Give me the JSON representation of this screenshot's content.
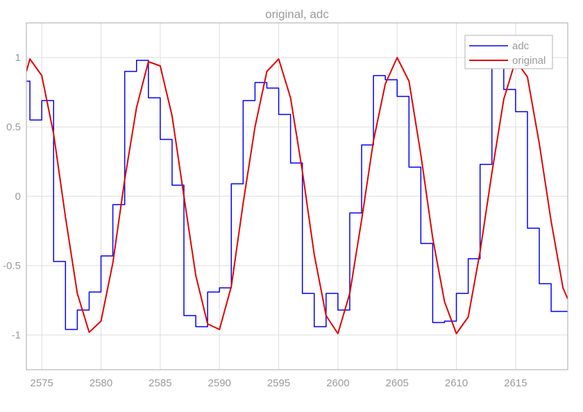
{
  "chart_data": {
    "type": "line",
    "title": "original, adc",
    "xlabel": "",
    "ylabel": "",
    "xlim": [
      2573.7,
      2619.4
    ],
    "ylim": [
      -1.25,
      1.25
    ],
    "x_ticks": [
      2575,
      2580,
      2585,
      2590,
      2595,
      2600,
      2605,
      2610,
      2615
    ],
    "y_ticks": [
      1,
      0.5,
      0,
      -0.5,
      -1
    ],
    "x_tick_labels": [
      "2575",
      "2580",
      "2585",
      "2590",
      "2595",
      "2600",
      "2605",
      "2610",
      "2615"
    ],
    "y_tick_labels": [
      "1",
      "0.5",
      "0",
      "-0.5",
      "-1"
    ],
    "grid": true,
    "legend_position": "top-right",
    "series": [
      {
        "name": "adc",
        "color": "#0000ff",
        "style": "step",
        "x": [
          2573.7,
          2574,
          2575,
          2576,
          2577,
          2578,
          2579,
          2580,
          2581,
          2582,
          2583,
          2584,
          2585,
          2586,
          2587,
          2588,
          2589,
          2590,
          2591,
          2592,
          2593,
          2594,
          2595,
          2596,
          2597,
          2598,
          2599,
          2600,
          2601,
          2602,
          2603,
          2604,
          2605,
          2606,
          2607,
          2608,
          2609,
          2610,
          2611,
          2612,
          2613,
          2614,
          2615,
          2616,
          2617,
          2618,
          2619
        ],
        "y": [
          0.83,
          0.55,
          0.69,
          -0.47,
          -0.96,
          -0.82,
          -0.69,
          -0.43,
          -0.06,
          0.9,
          0.98,
          0.71,
          0.41,
          0.08,
          -0.86,
          -0.94,
          -0.69,
          -0.66,
          0.09,
          0.69,
          0.82,
          0.78,
          0.59,
          0.24,
          -0.7,
          -0.94,
          -0.7,
          -0.82,
          -0.12,
          0.37,
          0.87,
          0.84,
          0.72,
          0.21,
          -0.34,
          -0.91,
          -0.9,
          -0.7,
          -0.45,
          0.23,
          0.93,
          0.77,
          0.61,
          -0.23,
          -0.63,
          -0.83,
          -0.83
        ]
      },
      {
        "name": "original",
        "color": "#e00000",
        "style": "line",
        "x": [
          2573.7,
          2574,
          2575,
          2576,
          2577,
          2578,
          2579,
          2580,
          2581,
          2582,
          2583,
          2584,
          2585,
          2586,
          2587,
          2588,
          2589,
          2590,
          2591,
          2592,
          2593,
          2594,
          2595,
          2596,
          2597,
          2598,
          2599,
          2600,
          2601,
          2602,
          2603,
          2604,
          2605,
          2606,
          2607,
          2608,
          2609,
          2610,
          2611,
          2612,
          2613,
          2614,
          2615,
          2616,
          2617,
          2618,
          2619,
          2619.4
        ],
        "y": [
          0.9,
          0.99,
          0.87,
          0.45,
          -0.15,
          -0.7,
          -0.98,
          -0.9,
          -0.48,
          0.12,
          0.64,
          0.97,
          0.94,
          0.58,
          0.0,
          -0.57,
          -0.92,
          -0.96,
          -0.65,
          -0.05,
          0.5,
          0.9,
          0.99,
          0.71,
          0.18,
          -0.42,
          -0.86,
          -0.99,
          -0.7,
          -0.17,
          0.4,
          0.81,
          1.0,
          0.83,
          0.3,
          -0.3,
          -0.76,
          -0.99,
          -0.87,
          -0.4,
          0.17,
          0.7,
          0.98,
          0.86,
          0.38,
          -0.18,
          -0.66,
          -0.74
        ]
      }
    ]
  }
}
